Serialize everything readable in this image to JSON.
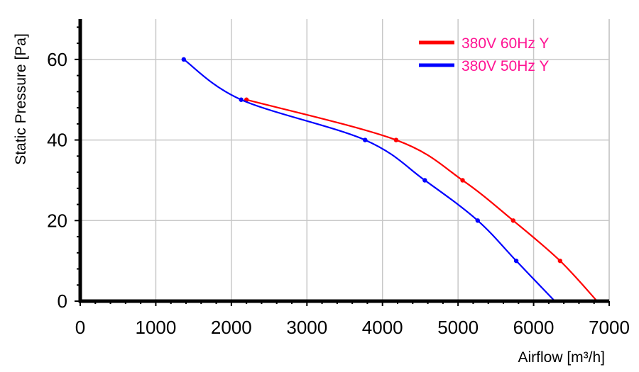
{
  "chart_data": {
    "type": "line",
    "title": "",
    "xlabel": "Airflow [m³/h]",
    "ylabel": "Static Pressure [Pa]",
    "xlim": [
      0,
      7000
    ],
    "ylim": [
      0,
      70
    ],
    "x_ticks": [
      0,
      1000,
      2000,
      3000,
      4000,
      5000,
      6000,
      7000
    ],
    "y_ticks": [
      0,
      20,
      40,
      60
    ],
    "grid": true,
    "legend_placement": "top-right",
    "legend_text_color": "#ff1493",
    "series": [
      {
        "name": "380V 60Hz Y",
        "color": "#ff0000",
        "points": [
          {
            "x": 2200,
            "y": 50
          },
          {
            "x": 4180,
            "y": 40
          },
          {
            "x": 5060,
            "y": 30
          },
          {
            "x": 5730,
            "y": 20
          },
          {
            "x": 6350,
            "y": 10
          },
          {
            "x": 6840,
            "y": 0
          }
        ],
        "markers": [
          true,
          true,
          true,
          true,
          true,
          false
        ]
      },
      {
        "name": "380V 50Hz Y",
        "color": "#0000ff",
        "points": [
          {
            "x": 1370,
            "y": 60
          },
          {
            "x": 2130,
            "y": 50
          },
          {
            "x": 3770,
            "y": 40
          },
          {
            "x": 4560,
            "y": 30
          },
          {
            "x": 5260,
            "y": 20
          },
          {
            "x": 5770,
            "y": 10
          },
          {
            "x": 6280,
            "y": 0
          }
        ],
        "markers": [
          true,
          true,
          true,
          true,
          true,
          true,
          false
        ]
      }
    ]
  }
}
